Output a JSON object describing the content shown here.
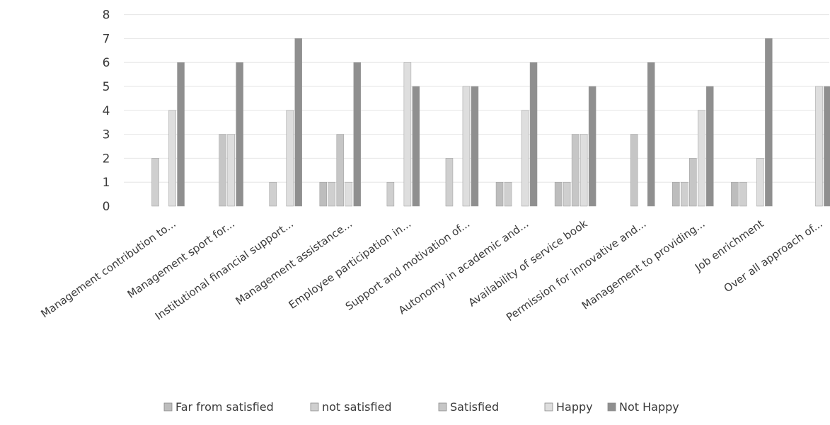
{
  "chart_data": {
    "type": "bar",
    "title": "",
    "xlabel": "",
    "ylabel": "",
    "ylim": [
      0,
      8
    ],
    "yticks": [
      0,
      1,
      2,
      3,
      4,
      5,
      6,
      7,
      8
    ],
    "grid": true,
    "legend_position": "bottom",
    "categories": [
      "Management contribution to...",
      "Management sport for...",
      "Institutional financial support...",
      "Management assistance...",
      "Employee participation in...",
      "Support and motivation of...",
      "Autonomy in academic and...",
      "Availability of service book",
      "Permission for innovative and...",
      "Management to providing...",
      "Job enrichment",
      "Over all approach of..."
    ],
    "series": [
      {
        "name": "Far from satisfied",
        "color": "#bdbdbd",
        "values": [
          0,
          0,
          0,
          1,
          0,
          0,
          1,
          1,
          0,
          1,
          1,
          0
        ]
      },
      {
        "name": "not satisfied",
        "color": "#cfcfcf",
        "values": [
          2,
          0,
          1,
          1,
          1,
          2,
          1,
          1,
          0,
          1,
          1,
          0
        ]
      },
      {
        "name": "Satisfied",
        "color": "#c6c6c6",
        "values": [
          0,
          3,
          0,
          3,
          0,
          0,
          0,
          3,
          3,
          2,
          0,
          0
        ]
      },
      {
        "name": "Happy",
        "color": "#dedede",
        "values": [
          4,
          3,
          4,
          1,
          6,
          5,
          4,
          3,
          0,
          4,
          2,
          5
        ]
      },
      {
        "name": "Not Happy",
        "color": "#8f8f8f",
        "values": [
          6,
          6,
          7,
          6,
          5,
          5,
          6,
          5,
          6,
          5,
          7,
          5
        ]
      }
    ]
  }
}
